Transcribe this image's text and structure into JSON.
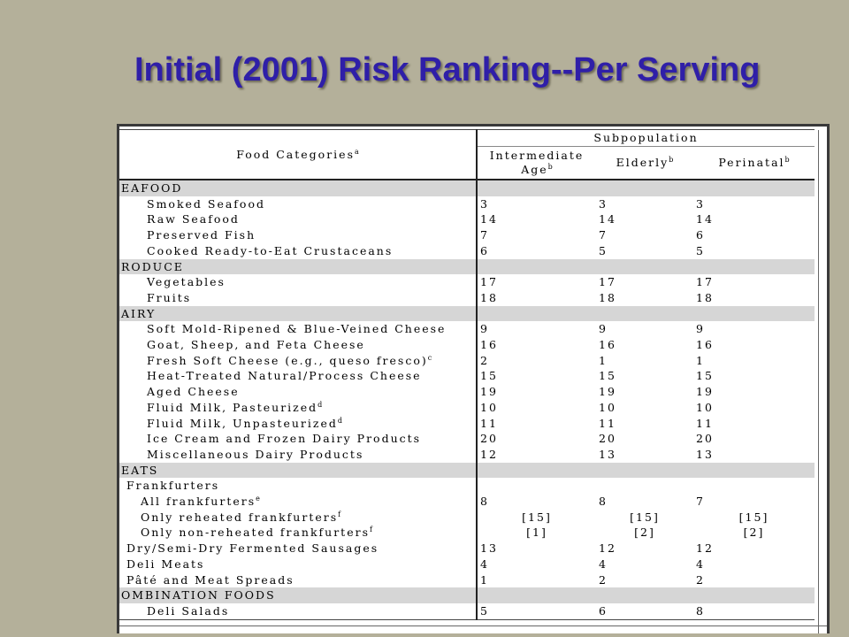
{
  "slide": {
    "title": "Initial (2001) Risk Ranking--Per Serving"
  },
  "table": {
    "header": {
      "food_categories": "Food Categories",
      "food_categories_note": "a",
      "subpopulation": "Subpopulation",
      "intermediate_line1": "Intermediate",
      "intermediate_line2": "Age",
      "intermediate_note": "b",
      "elderly": "Elderly",
      "elderly_note": "b",
      "perinatal": "Perinatal",
      "perinatal_note": "b"
    },
    "rows": [
      {
        "type": "category",
        "name": "EAFOOD"
      },
      {
        "type": "item",
        "name": "Smoked Seafood",
        "note": "",
        "v": [
          "3",
          "3",
          "3"
        ]
      },
      {
        "type": "item",
        "name": "Raw Seafood",
        "note": "",
        "v": [
          "14",
          "14",
          "14"
        ]
      },
      {
        "type": "item",
        "name": "Preserved Fish",
        "note": "",
        "v": [
          "7",
          "7",
          "6"
        ]
      },
      {
        "type": "item",
        "name": "Cooked Ready-to-Eat Crustaceans",
        "note": "",
        "v": [
          "6",
          "5",
          "5"
        ]
      },
      {
        "type": "category",
        "name": "RODUCE"
      },
      {
        "type": "item",
        "name": "Vegetables",
        "note": "",
        "v": [
          "17",
          "17",
          "17"
        ]
      },
      {
        "type": "item",
        "name": "Fruits",
        "note": "",
        "v": [
          "18",
          "18",
          "18"
        ]
      },
      {
        "type": "category",
        "name": "AIRY"
      },
      {
        "type": "item",
        "name": "Soft Mold-Ripened & Blue-Veined Cheese",
        "note": "",
        "v": [
          "9",
          "9",
          "9"
        ]
      },
      {
        "type": "item",
        "name": "Goat, Sheep, and Feta Cheese",
        "note": "",
        "v": [
          "16",
          "16",
          "16"
        ]
      },
      {
        "type": "item",
        "name": "Fresh Soft Cheese (e.g., queso fresco)",
        "note": "c",
        "v": [
          "2",
          "1",
          "1"
        ]
      },
      {
        "type": "item",
        "name": "Heat-Treated Natural/Process Cheese",
        "note": "",
        "v": [
          "15",
          "15",
          "15"
        ]
      },
      {
        "type": "item",
        "name": "Aged Cheese",
        "note": "",
        "v": [
          "19",
          "19",
          "19"
        ]
      },
      {
        "type": "item",
        "name": "Fluid Milk, Pasteurized",
        "note": "d",
        "v": [
          "10",
          "10",
          "10"
        ]
      },
      {
        "type": "item",
        "name": "Fluid Milk, Unpasteurized",
        "note": "d",
        "v": [
          "11",
          "11",
          "11"
        ]
      },
      {
        "type": "item",
        "name": "Ice Cream and Frozen Dairy Products",
        "note": "",
        "v": [
          "20",
          "20",
          "20"
        ]
      },
      {
        "type": "item",
        "name": "Miscellaneous Dairy Products",
        "note": "",
        "v": [
          "12",
          "13",
          "13"
        ]
      },
      {
        "type": "category",
        "name": "EATS"
      },
      {
        "type": "sub0",
        "name": "Frankfurters",
        "note": "",
        "v": [
          "",
          "",
          ""
        ]
      },
      {
        "type": "sub1",
        "name": "All frankfurters",
        "note": "e",
        "v": [
          "8",
          "8",
          "7"
        ]
      },
      {
        "type": "sub1c",
        "name": "Only reheated frankfurters",
        "note": "f",
        "v": [
          "[15]",
          "[15]",
          "[15]"
        ]
      },
      {
        "type": "sub1c",
        "name": "Only non-reheated frankfurters",
        "note": "f",
        "v": [
          "[1]",
          "[2]",
          "[2]"
        ]
      },
      {
        "type": "sub0",
        "name": "Dry/Semi-Dry Fermented Sausages",
        "note": "",
        "v": [
          "13",
          "12",
          "12"
        ]
      },
      {
        "type": "sub0",
        "name": "Deli Meats",
        "note": "",
        "v": [
          "4",
          "4",
          "4"
        ]
      },
      {
        "type": "sub0",
        "name": "Pâté and Meat Spreads",
        "note": "",
        "v": [
          "1",
          "2",
          "2"
        ]
      },
      {
        "type": "category",
        "name": "OMBINATION FOODS"
      },
      {
        "type": "item",
        "name": "Deli Salads",
        "note": "",
        "v": [
          "5",
          "6",
          "8"
        ],
        "last": true
      }
    ]
  },
  "colors": {
    "background": "#b4b09a",
    "title": "#2f1fa8",
    "category_band": "#d6d6d6"
  }
}
